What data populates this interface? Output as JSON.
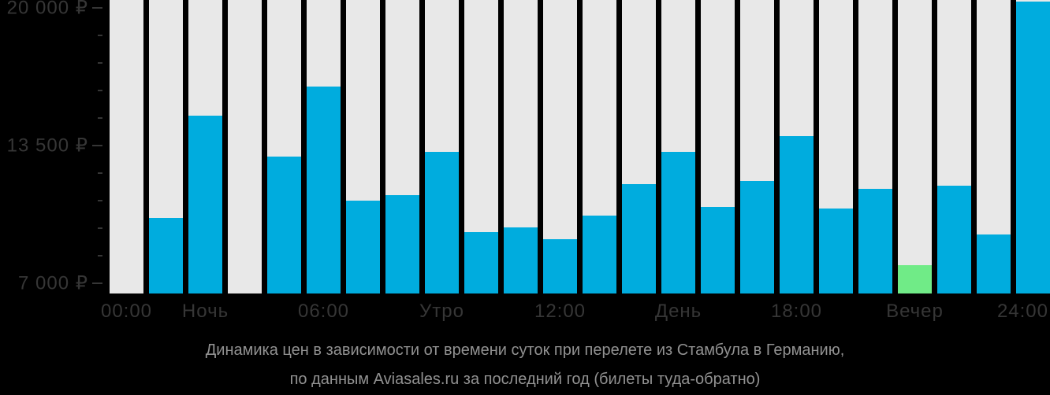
{
  "chart_data": {
    "type": "bar",
    "title": "Динамика цен в зависимости от времени суток при перелете из Стамбула в Германию,",
    "subtitle": "по данным Aviasales.ru за последний год (билеты туда-обратно)",
    "currency": "₽",
    "y_axis": {
      "ticks": [
        {
          "value": 20000,
          "label": "20 000 ₽"
        },
        {
          "value": 13500,
          "label": "13 500 ₽"
        },
        {
          "value": 7000,
          "label": "7 000 ₽"
        }
      ],
      "minor_ticks": [
        18700,
        17400,
        16100,
        14800,
        12200,
        10900,
        9600,
        8300
      ],
      "range": [
        6520,
        20370
      ]
    },
    "x_axis": {
      "labels": [
        {
          "bar_index": 0,
          "text": "00:00"
        },
        {
          "bar_index": 2,
          "text": "Ночь"
        },
        {
          "bar_index": 5,
          "text": "06:00"
        },
        {
          "bar_index": 8,
          "text": "Утро"
        },
        {
          "bar_index": 11,
          "text": "12:00"
        },
        {
          "bar_index": 14,
          "text": "День"
        },
        {
          "bar_index": 17,
          "text": "18:00"
        },
        {
          "bar_index": 20,
          "text": "Вечер"
        },
        {
          "bar_index": 23,
          "text": "24:00"
        }
      ]
    },
    "bars": [
      {
        "value": null
      },
      {
        "value": 10100
      },
      {
        "value": 14900
      },
      {
        "value": null
      },
      {
        "value": 13000
      },
      {
        "value": 16300
      },
      {
        "value": 10900
      },
      {
        "value": 11150
      },
      {
        "value": 13200
      },
      {
        "value": 9400
      },
      {
        "value": 9650
      },
      {
        "value": 9100
      },
      {
        "value": 10200
      },
      {
        "value": 11700
      },
      {
        "value": 13200
      },
      {
        "value": 10600
      },
      {
        "value": 11850
      },
      {
        "value": 13950
      },
      {
        "value": 10550
      },
      {
        "value": 11450
      },
      {
        "value": 7850,
        "highlight": true
      },
      {
        "value": 11600
      },
      {
        "value": 9300
      },
      {
        "value": 20300
      }
    ],
    "colors": {
      "bar": "#00ACDE",
      "highlight": "#70EB87",
      "column_bg": "#E8E8E8",
      "background": "#000000",
      "axis_text": "#363636",
      "caption_text": "#919191"
    }
  }
}
